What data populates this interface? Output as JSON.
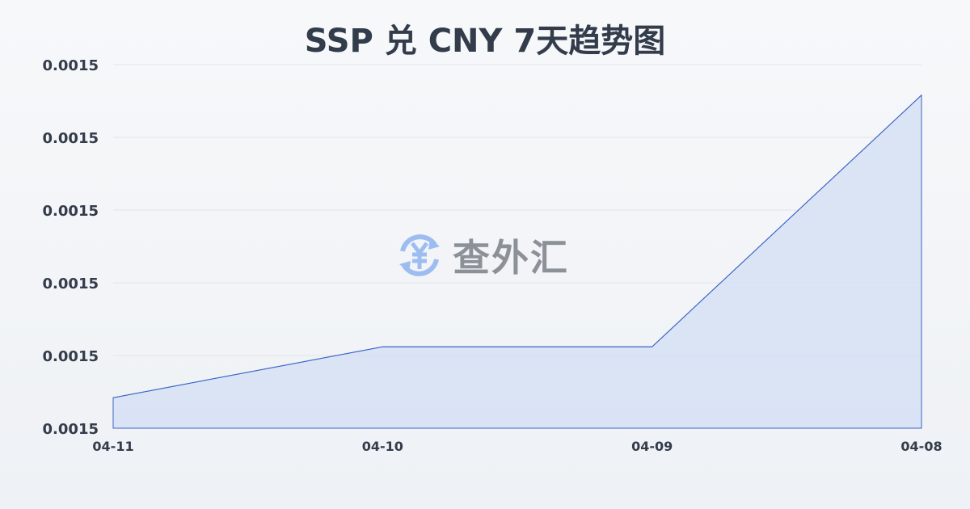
{
  "chart_data": {
    "type": "area",
    "title": "SSP 兑 CNY 7天趋势图",
    "xlabel": "",
    "ylabel": "",
    "categories": [
      "04-11",
      "04-10",
      "04-09",
      "04-08"
    ],
    "series": [
      {
        "values": [
          0.0015021,
          0.0015056,
          0.0015056,
          0.0015229
        ]
      }
    ],
    "ylim": [
      0.0015,
      0.001525
    ],
    "yticks": [
      0.0015,
      0.001505,
      0.00151,
      0.001515,
      0.00152,
      0.001525
    ],
    "ytick_labels": [
      "0.0015",
      "0.0015",
      "0.0015",
      "0.0015",
      "0.0015",
      "0.0015"
    ],
    "grid": true,
    "line_color": "#3a63c8",
    "fill_color": "#d6e0f5"
  },
  "watermark": {
    "text": "查外汇",
    "icon": "yen-exchange-icon",
    "icon_color": "#8fb4f0"
  }
}
